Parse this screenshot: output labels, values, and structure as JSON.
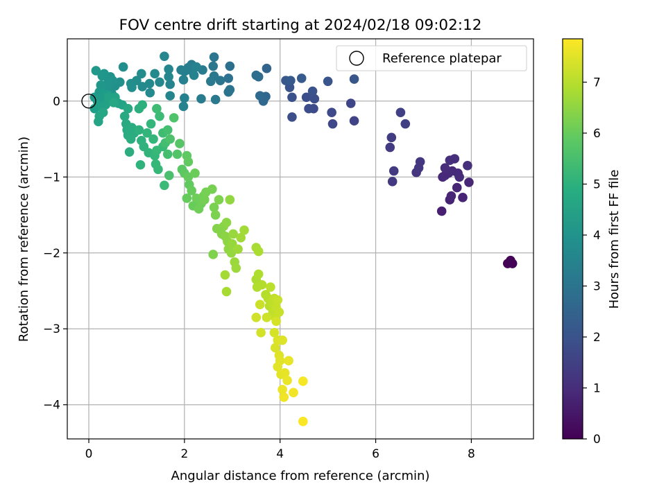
{
  "chart_data": {
    "type": "scatter",
    "title": "FOV centre drift starting at 2024/02/18 09:02:12",
    "xlabel": "Angular distance from reference (arcmin)",
    "ylabel": "Rotation from reference (arcmin)",
    "xlim": [
      -0.45,
      9.3
    ],
    "ylim": [
      -4.45,
      0.82
    ],
    "x_ticks": [
      0,
      2,
      4,
      6,
      8
    ],
    "x_tick_labels": [
      "0",
      "2",
      "4",
      "6",
      "8"
    ],
    "y_ticks": [
      0,
      -1,
      -2,
      -3,
      -4
    ],
    "y_tick_labels": [
      "0",
      "−1",
      "−2",
      "−3",
      "−4"
    ],
    "grid": true,
    "legend": {
      "position": "top-right",
      "entries": [
        "Reference platepar"
      ]
    },
    "reference_point": {
      "x": 0,
      "y": 0,
      "label": "Reference platepar"
    },
    "colorbar": {
      "label": "Hours from first FF file",
      "colormap": "viridis",
      "range": [
        0,
        7.85
      ],
      "ticks": [
        0,
        1,
        2,
        3,
        4,
        5,
        6,
        7
      ],
      "tick_labels": [
        "0",
        "1",
        "2",
        "3",
        "4",
        "5",
        "6",
        "7"
      ]
    },
    "series": [
      {
        "color_by": "hours",
        "points": [
          [
            8.76,
            -2.14,
            0.02
          ],
          [
            8.82,
            -2.1,
            0.04
          ],
          [
            8.86,
            -2.14,
            0.05
          ],
          [
            8.8,
            -2.13,
            0.06
          ],
          [
            7.38,
            -1.45,
            0.7
          ],
          [
            7.55,
            -1.3,
            0.75
          ],
          [
            7.58,
            -1.25,
            0.8
          ],
          [
            7.82,
            -1.27,
            0.78
          ],
          [
            7.7,
            -1.14,
            0.82
          ],
          [
            7.4,
            -1.0,
            0.9
          ],
          [
            7.45,
            -0.98,
            0.92
          ],
          [
            7.52,
            -0.95,
            0.88
          ],
          [
            7.6,
            -0.92,
            0.95
          ],
          [
            7.75,
            -1.0,
            0.97
          ],
          [
            7.95,
            -1.07,
            0.85
          ],
          [
            7.45,
            -0.88,
            1.0
          ],
          [
            7.55,
            -0.78,
            1.05
          ],
          [
            7.65,
            -0.76,
            1.02
          ],
          [
            7.92,
            -0.85,
            1.08
          ],
          [
            7.72,
            -0.95,
            0.96
          ],
          [
            6.85,
            -0.94,
            1.2
          ],
          [
            6.9,
            -0.88,
            1.22
          ],
          [
            6.93,
            -0.8,
            1.25
          ],
          [
            6.35,
            -1.06,
            1.3
          ],
          [
            6.38,
            -0.92,
            1.32
          ],
          [
            6.3,
            -0.61,
            1.35
          ],
          [
            6.33,
            -0.48,
            1.38
          ],
          [
            6.62,
            -0.3,
            1.45
          ],
          [
            6.52,
            -0.15,
            1.5
          ],
          [
            5.55,
            -0.26,
            1.6
          ],
          [
            5.48,
            -0.03,
            1.65
          ],
          [
            5.1,
            -0.3,
            1.7
          ],
          [
            5.08,
            -0.15,
            1.75
          ],
          [
            4.7,
            -0.1,
            1.8
          ],
          [
            4.6,
            -0.1,
            1.82
          ],
          [
            4.55,
            0.05,
            1.85
          ],
          [
            4.72,
            0.03,
            1.88
          ],
          [
            4.25,
            -0.21,
            1.9
          ],
          [
            4.25,
            0.05,
            1.95
          ],
          [
            4.2,
            0.18,
            2.0
          ],
          [
            4.68,
            0.13,
            2.02
          ],
          [
            5.0,
            0.26,
            2.05
          ],
          [
            5.55,
            0.29,
            2.1
          ],
          [
            4.12,
            0.27,
            2.15
          ],
          [
            4.22,
            0.27,
            2.2
          ],
          [
            4.45,
            0.3,
            2.25
          ],
          [
            3.72,
            0.43,
            2.5
          ],
          [
            3.7,
            0.06,
            2.6
          ],
          [
            3.65,
            0.0,
            2.65
          ],
          [
            3.58,
            0.07,
            2.7
          ],
          [
            3.55,
            0.32,
            2.75
          ],
          [
            3.5,
            0.34,
            2.8
          ],
          [
            2.95,
            0.46,
            2.9
          ],
          [
            2.92,
            0.3,
            2.95
          ],
          [
            2.95,
            0.15,
            3.0
          ],
          [
            2.92,
            0.12,
            3.02
          ],
          [
            2.75,
            0.27,
            3.05
          ],
          [
            2.62,
            0.58,
            3.1
          ],
          [
            2.6,
            0.46,
            3.12
          ],
          [
            2.62,
            0.33,
            3.15
          ],
          [
            2.55,
            0.26,
            3.18
          ],
          [
            2.65,
            0.02,
            3.2
          ],
          [
            2.38,
            0.41,
            3.25
          ],
          [
            2.35,
            0.03,
            3.28
          ],
          [
            2.15,
            0.48,
            3.3
          ],
          [
            2.12,
            0.41,
            3.32
          ],
          [
            2.08,
            0.44,
            3.35
          ],
          [
            2.0,
            0.39,
            3.38
          ],
          [
            1.93,
            0.41,
            3.4
          ],
          [
            1.98,
            0.28,
            3.42
          ],
          [
            2.0,
            0.04,
            3.45
          ],
          [
            1.98,
            -0.07,
            3.48
          ],
          [
            2.25,
            0.45,
            3.5
          ],
          [
            2.2,
            0.34,
            3.52
          ],
          [
            1.7,
            0.22,
            3.55
          ],
          [
            1.7,
            0.07,
            3.58
          ],
          [
            1.58,
            0.59,
            3.6
          ],
          [
            1.67,
            0.42,
            3.62
          ],
          [
            1.67,
            0.32,
            3.65
          ],
          [
            1.48,
            0.25,
            3.68
          ],
          [
            1.38,
            0.36,
            3.7
          ],
          [
            1.27,
            0.23,
            3.72
          ],
          [
            1.28,
            0.11,
            3.75
          ],
          [
            1.12,
            0.19,
            3.78
          ],
          [
            1.1,
            0.36,
            3.8
          ],
          [
            1.0,
            0.27,
            3.82
          ],
          [
            0.88,
            0.23,
            3.85
          ],
          [
            0.9,
            0.18,
            3.88
          ],
          [
            0.72,
            0.45,
            3.9
          ],
          [
            0.65,
            0.25,
            3.92
          ],
          [
            0.55,
            0.2,
            3.95
          ],
          [
            0.5,
            0.27,
            3.98
          ],
          [
            0.48,
            0.1,
            4.0
          ],
          [
            0.45,
            0.32,
            4.02
          ],
          [
            0.4,
            0.24,
            4.05
          ],
          [
            0.38,
            0.18,
            4.08
          ],
          [
            0.32,
            0.36,
            4.1
          ],
          [
            0.28,
            0.33,
            4.12
          ],
          [
            0.25,
            0.21,
            4.15
          ],
          [
            0.22,
            0.12,
            4.18
          ],
          [
            0.15,
            0.4,
            4.2
          ],
          [
            0.12,
            0.05,
            4.22
          ],
          [
            0.18,
            0.0,
            4.25
          ],
          [
            0.25,
            0.05,
            4.28
          ],
          [
            0.3,
            0.1,
            4.3
          ],
          [
            0.35,
            0.02,
            4.32
          ],
          [
            0.4,
            0.08,
            4.35
          ],
          [
            0.45,
            0.0,
            4.38
          ],
          [
            0.12,
            -0.1,
            4.4
          ],
          [
            0.2,
            -0.05,
            4.42
          ],
          [
            0.28,
            -0.08,
            4.45
          ],
          [
            0.35,
            -0.05,
            4.48
          ],
          [
            0.42,
            0.05,
            4.5
          ],
          [
            0.55,
            0.05,
            4.52
          ],
          [
            0.62,
            -0.03,
            4.55
          ],
          [
            0.7,
            -0.05,
            4.58
          ],
          [
            0.2,
            -0.27,
            4.6
          ],
          [
            0.22,
            -0.2,
            4.62
          ],
          [
            0.3,
            -0.15,
            4.65
          ],
          [
            0.52,
            -0.02,
            4.68
          ],
          [
            0.75,
            -0.2,
            4.7
          ],
          [
            0.82,
            -0.1,
            4.72
          ],
          [
            0.78,
            -0.3,
            4.75
          ],
          [
            0.8,
            -0.38,
            4.78
          ],
          [
            0.82,
            -0.45,
            4.8
          ],
          [
            0.9,
            -0.35,
            4.82
          ],
          [
            0.95,
            -0.42,
            4.85
          ],
          [
            0.88,
            -0.5,
            4.87
          ],
          [
            0.85,
            -0.67,
            4.9
          ],
          [
            1.05,
            -0.1,
            4.92
          ],
          [
            1.12,
            -0.05,
            4.95
          ],
          [
            1.05,
            -0.38,
            4.97
          ],
          [
            1.1,
            -0.52,
            5.0
          ],
          [
            1.15,
            -0.6,
            5.02
          ],
          [
            1.08,
            -0.84,
            5.05
          ],
          [
            1.25,
            -0.68,
            5.1
          ],
          [
            1.22,
            -0.42,
            5.12
          ],
          [
            1.3,
            -0.3,
            5.15
          ],
          [
            1.35,
            -0.5,
            5.18
          ],
          [
            1.38,
            -0.72,
            5.2
          ],
          [
            1.4,
            -0.83,
            5.22
          ],
          [
            1.45,
            -0.9,
            5.25
          ],
          [
            1.42,
            -0.65,
            5.28
          ],
          [
            1.55,
            -0.6,
            5.3
          ],
          [
            1.58,
            -1.11,
            5.32
          ],
          [
            1.48,
            -0.2,
            5.35
          ],
          [
            1.42,
            -0.1,
            5.38
          ],
          [
            1.55,
            -0.42,
            5.4
          ],
          [
            1.6,
            -0.55,
            5.45
          ],
          [
            1.65,
            -0.7,
            5.48
          ],
          [
            1.65,
            -0.38,
            5.5
          ],
          [
            1.68,
            -0.98,
            5.55
          ],
          [
            1.7,
            -0.5,
            5.6
          ],
          [
            1.78,
            -0.22,
            5.65
          ],
          [
            1.85,
            -0.7,
            5.7
          ],
          [
            1.9,
            -0.56,
            5.75
          ],
          [
            1.95,
            -0.9,
            5.8
          ],
          [
            2.0,
            -0.95,
            5.85
          ],
          [
            2.05,
            -0.72,
            5.88
          ],
          [
            2.08,
            -0.8,
            5.9
          ],
          [
            2.1,
            -1.1,
            5.92
          ],
          [
            2.08,
            -1.0,
            5.95
          ],
          [
            2.05,
            -1.28,
            5.98
          ],
          [
            2.15,
            -1.18,
            6.0
          ],
          [
            2.18,
            -1.38,
            6.02
          ],
          [
            2.22,
            -0.95,
            6.05
          ],
          [
            2.25,
            -1.28,
            6.08
          ],
          [
            2.3,
            -1.42,
            6.1
          ],
          [
            2.35,
            -1.35,
            6.12
          ],
          [
            2.4,
            -1.25,
            6.15
          ],
          [
            2.42,
            -1.3,
            6.18
          ],
          [
            2.45,
            -1.2,
            6.2
          ],
          [
            2.58,
            -1.16,
            6.22
          ],
          [
            2.62,
            -1.4,
            6.25
          ],
          [
            2.65,
            -1.5,
            6.28
          ],
          [
            2.72,
            -1.3,
            6.3
          ],
          [
            2.6,
            -2.02,
            6.32
          ],
          [
            2.68,
            -1.68,
            6.35
          ],
          [
            2.75,
            -1.7,
            6.38
          ],
          [
            2.78,
            -1.75,
            6.4
          ],
          [
            2.82,
            -1.65,
            6.42
          ],
          [
            2.85,
            -1.78,
            6.45
          ],
          [
            2.88,
            -1.6,
            6.48
          ],
          [
            2.9,
            -1.85,
            6.5
          ],
          [
            2.92,
            -1.95,
            6.52
          ],
          [
            2.95,
            -1.3,
            6.55
          ],
          [
            2.98,
            -2.0,
            6.58
          ],
          [
            3.0,
            -1.88,
            6.6
          ],
          [
            3.02,
            -1.75,
            6.62
          ],
          [
            3.05,
            -2.12,
            6.65
          ],
          [
            3.08,
            -2.2,
            6.68
          ],
          [
            3.12,
            -1.95,
            6.7
          ],
          [
            3.18,
            -1.8,
            6.72
          ],
          [
            3.25,
            -1.7,
            6.75
          ],
          [
            2.85,
            -2.29,
            6.78
          ],
          [
            2.88,
            -2.51,
            6.8
          ],
          [
            3.5,
            -1.93,
            6.82
          ],
          [
            3.55,
            -1.98,
            6.85
          ],
          [
            3.5,
            -2.35,
            6.88
          ],
          [
            3.55,
            -2.28,
            6.9
          ],
          [
            3.52,
            -2.45,
            6.92
          ],
          [
            3.62,
            -2.42,
            6.95
          ],
          [
            3.7,
            -2.55,
            6.98
          ],
          [
            3.75,
            -2.6,
            7.0
          ],
          [
            3.78,
            -2.7,
            7.02
          ],
          [
            3.8,
            -2.45,
            7.05
          ],
          [
            3.82,
            -2.65,
            7.08
          ],
          [
            3.85,
            -2.78,
            7.1
          ],
          [
            3.88,
            -2.6,
            7.12
          ],
          [
            3.9,
            -2.85,
            7.15
          ],
          [
            3.92,
            -2.72,
            7.18
          ],
          [
            3.95,
            -2.62,
            7.2
          ],
          [
            3.98,
            -2.78,
            7.22
          ],
          [
            3.58,
            -2.68,
            7.25
          ],
          [
            3.72,
            -2.85,
            7.28
          ],
          [
            3.5,
            -2.85,
            7.3
          ],
          [
            3.6,
            -3.05,
            7.32
          ],
          [
            3.88,
            -3.05,
            7.35
          ],
          [
            3.92,
            -2.9,
            7.38
          ],
          [
            3.9,
            -3.25,
            7.4
          ],
          [
            3.95,
            -3.15,
            7.42
          ],
          [
            4.05,
            -3.15,
            7.45
          ],
          [
            3.98,
            -3.35,
            7.48
          ],
          [
            4.0,
            -3.42,
            7.5
          ],
          [
            3.95,
            -3.5,
            7.52
          ],
          [
            4.02,
            -3.6,
            7.55
          ],
          [
            4.1,
            -3.58,
            7.58
          ],
          [
            4.18,
            -3.42,
            7.6
          ],
          [
            4.15,
            -3.68,
            7.62
          ],
          [
            4.05,
            -3.8,
            7.65
          ],
          [
            4.08,
            -3.9,
            7.68
          ],
          [
            4.28,
            -3.84,
            7.7
          ],
          [
            4.48,
            -3.69,
            7.75
          ],
          [
            4.48,
            -4.22,
            7.8
          ]
        ]
      }
    ]
  }
}
